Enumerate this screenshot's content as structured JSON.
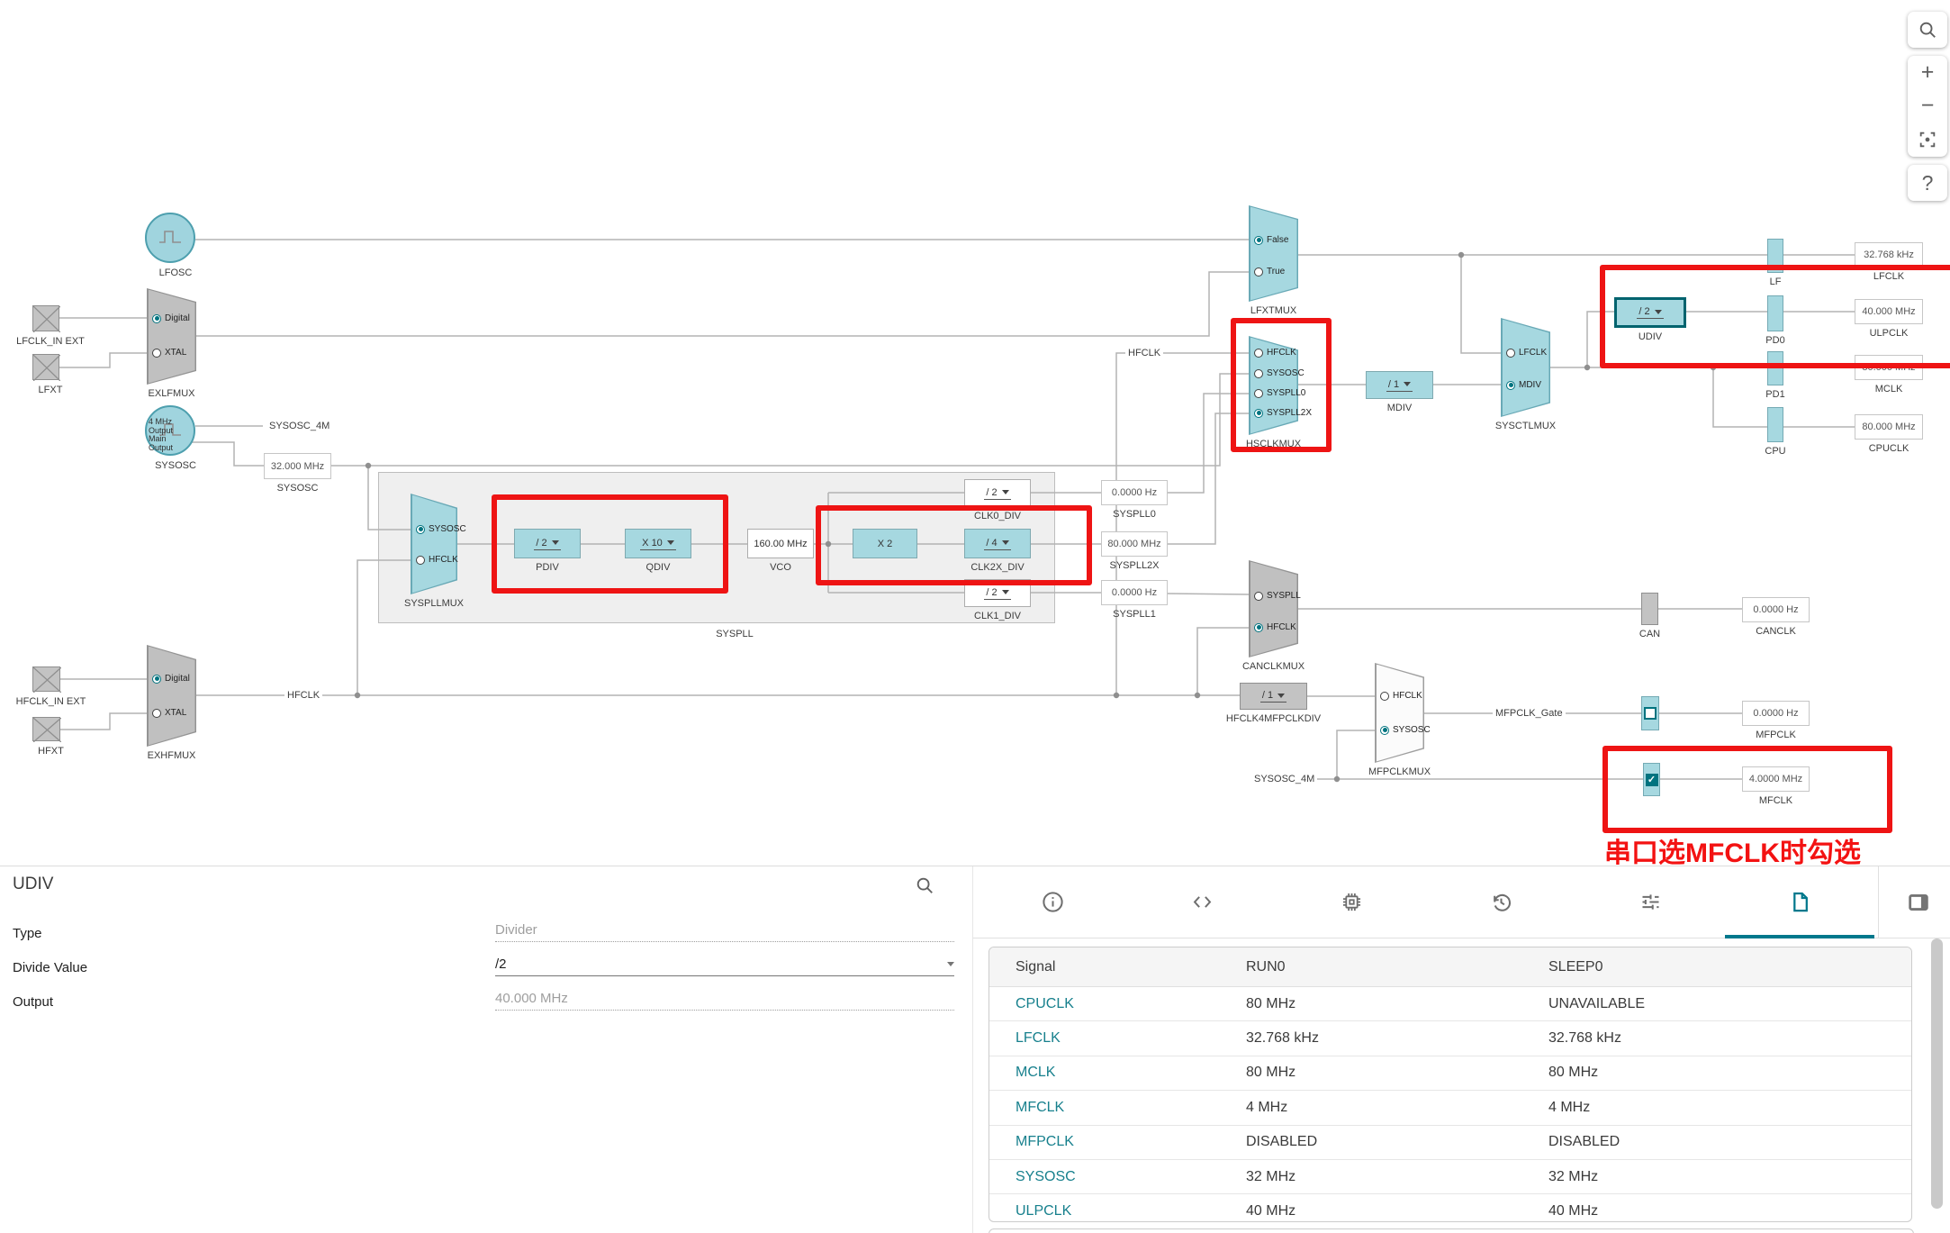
{
  "toolbar": {
    "zoom_in": "+",
    "zoom_out": "−",
    "help": "?"
  },
  "diagram": {
    "oscillators": [
      {
        "id": "LFOSC",
        "label": "LFOSC"
      },
      {
        "id": "SYSOSC",
        "label": "SYSOSC",
        "port_labels": [
          "4 MHz Output",
          "Main Output"
        ]
      }
    ],
    "ext_inputs": [
      {
        "id": "LFCLK_IN_EXT",
        "label": "LFCLK_IN EXT"
      },
      {
        "id": "LFXT",
        "label": "LFXT"
      },
      {
        "id": "HFCLK_IN_EXT",
        "label": "HFCLK_IN EXT"
      },
      {
        "id": "HFXT",
        "label": "HFXT"
      }
    ],
    "muxes": [
      {
        "id": "EXLFMUX",
        "label": "EXLFMUX",
        "options": [
          "Digital",
          "XTAL"
        ],
        "selected": "Digital"
      },
      {
        "id": "EXHFMUX",
        "label": "EXHFMUX",
        "options": [
          "Digital",
          "XTAL"
        ],
        "selected": "Digital"
      },
      {
        "id": "SYSPLLMUX",
        "label": "SYSPLLMUX",
        "options": [
          "SYSOSC",
          "HFCLK"
        ],
        "selected": "SYSOSC"
      },
      {
        "id": "LFXTMUX",
        "label": "LFXTMUX",
        "options": [
          "False",
          "True"
        ],
        "selected": "False"
      },
      {
        "id": "HSCLKMUX",
        "label": "HSCLKMUX",
        "options": [
          "HFCLK",
          "SYSOSC",
          "SYSPLL0",
          "SYSPLL2X"
        ],
        "selected": "SYSPLL2X"
      },
      {
        "id": "SYSCTLMUX",
        "label": "SYSCTLMUX",
        "options": [
          "LFCLK",
          "MDIV"
        ],
        "selected": "MDIV"
      },
      {
        "id": "CANCLKMUX",
        "label": "CANCLKMUX",
        "options": [
          "SYSPLL",
          "HFCLK"
        ],
        "selected": "HFCLK"
      },
      {
        "id": "MFPCLKMUX",
        "label": "MFPCLKMUX",
        "options": [
          "HFCLK",
          "SYSOSC"
        ],
        "selected": "SYSOSC"
      }
    ],
    "blocks": [
      {
        "id": "PDIV",
        "label": "PDIV",
        "value": "/ 2",
        "kind": "dropdown"
      },
      {
        "id": "QDIV",
        "label": "QDIV",
        "value": "X 10",
        "kind": "dropdown"
      },
      {
        "id": "VCO",
        "label": "VCO",
        "value": "160.00 MHz",
        "kind": "value"
      },
      {
        "id": "X2",
        "label": "",
        "value": "X 2",
        "kind": "plain"
      },
      {
        "id": "CLK0_DIV",
        "label": "CLK0_DIV",
        "value": "/ 2",
        "kind": "dropdown"
      },
      {
        "id": "CLK2X_DIV",
        "label": "CLK2X_DIV",
        "value": "/ 4",
        "kind": "dropdown"
      },
      {
        "id": "CLK1_DIV",
        "label": "CLK1_DIV",
        "value": "/ 2",
        "kind": "dropdown"
      },
      {
        "id": "MDIV",
        "label": "MDIV",
        "value": "/ 1",
        "kind": "dropdown"
      },
      {
        "id": "UDIV",
        "label": "UDIV",
        "value": "/ 2",
        "kind": "dropdown",
        "selected": true
      },
      {
        "id": "HFCLK4MFPCLKDIV",
        "label": "HFCLK4MFPCLKDIV",
        "value": "/ 1",
        "kind": "dropdown"
      }
    ],
    "output_boxes": [
      {
        "id": "SYSOSC_BOX",
        "value": "32.000 MHz",
        "label": "SYSOSC"
      },
      {
        "id": "SYSPLL0",
        "value": "0.0000 Hz",
        "label": "SYSPLL0"
      },
      {
        "id": "SYSPLL2X",
        "value": "80.000 MHz",
        "label": "SYSPLL2X"
      },
      {
        "id": "SYSPLL1",
        "value": "0.0000 Hz",
        "label": "SYSPLL1"
      },
      {
        "id": "LFCLK",
        "value": "32.768 kHz",
        "label": "LFCLK"
      },
      {
        "id": "ULPCLK",
        "value": "40.000 MHz",
        "label": "ULPCLK"
      },
      {
        "id": "MCLK",
        "value": "80.000 MHz",
        "label": "MCLK"
      },
      {
        "id": "CPUCLK",
        "value": "80.000 MHz",
        "label": "CPUCLK"
      },
      {
        "id": "CANCLK",
        "value": "0.0000 Hz",
        "label": "CANCLK"
      },
      {
        "id": "MFPCLK",
        "value": "0.0000 Hz",
        "label": "MFPCLK"
      },
      {
        "id": "MFCLK",
        "value": "4.0000 MHz",
        "label": "MFCLK"
      }
    ],
    "gates": [
      {
        "id": "LF",
        "label": "LF",
        "style": "teal",
        "checkbox": "none"
      },
      {
        "id": "PD0",
        "label": "PD0",
        "style": "teal",
        "checkbox": "none"
      },
      {
        "id": "PD1",
        "label": "PD1",
        "style": "teal",
        "checkbox": "none"
      },
      {
        "id": "CPU",
        "label": "CPU",
        "style": "teal",
        "checkbox": "none"
      },
      {
        "id": "CAN",
        "label": "CAN",
        "style": "gray",
        "checkbox": "none"
      },
      {
        "id": "MFPCLK_GATE",
        "label": "",
        "style": "teal",
        "checkbox": "unchecked"
      },
      {
        "id": "MFCLK_GATE",
        "label": "",
        "style": "teal",
        "checkbox": "checked"
      }
    ],
    "net_labels": [
      "SYSOSC_4M",
      "HFCLK",
      "HFCLK",
      "SYSOSC_4M",
      "MFPCLK_Gate"
    ],
    "group_label": "SYSPLL",
    "annotation_note": "串口选MFCLK时勾选"
  },
  "inspector": {
    "title": "UDIV",
    "fields": [
      {
        "label": "Type",
        "value": "Divider",
        "disabled": true
      },
      {
        "label": "Divide Value",
        "value": "/2",
        "dropdown": true
      },
      {
        "label": "Output",
        "value": "40.000 MHz",
        "disabled": true
      }
    ]
  },
  "tabs": {
    "items": [
      "info",
      "code",
      "device",
      "history",
      "tune",
      "document"
    ],
    "selected_index": 5
  },
  "signal_table": {
    "columns": [
      "Signal",
      "RUN0",
      "SLEEP0"
    ],
    "rows": [
      [
        "CPUCLK",
        "80 MHz",
        "UNAVAILABLE"
      ],
      [
        "LFCLK",
        "32.768 kHz",
        "32.768 kHz"
      ],
      [
        "MCLK",
        "80 MHz",
        "80 MHz"
      ],
      [
        "MFCLK",
        "4 MHz",
        "4 MHz"
      ],
      [
        "MFPCLK",
        "DISABLED",
        "DISABLED"
      ],
      [
        "SYSOSC",
        "32 MHz",
        "32 MHz"
      ],
      [
        "ULPCLK",
        "40 MHz",
        "40 MHz"
      ]
    ]
  }
}
